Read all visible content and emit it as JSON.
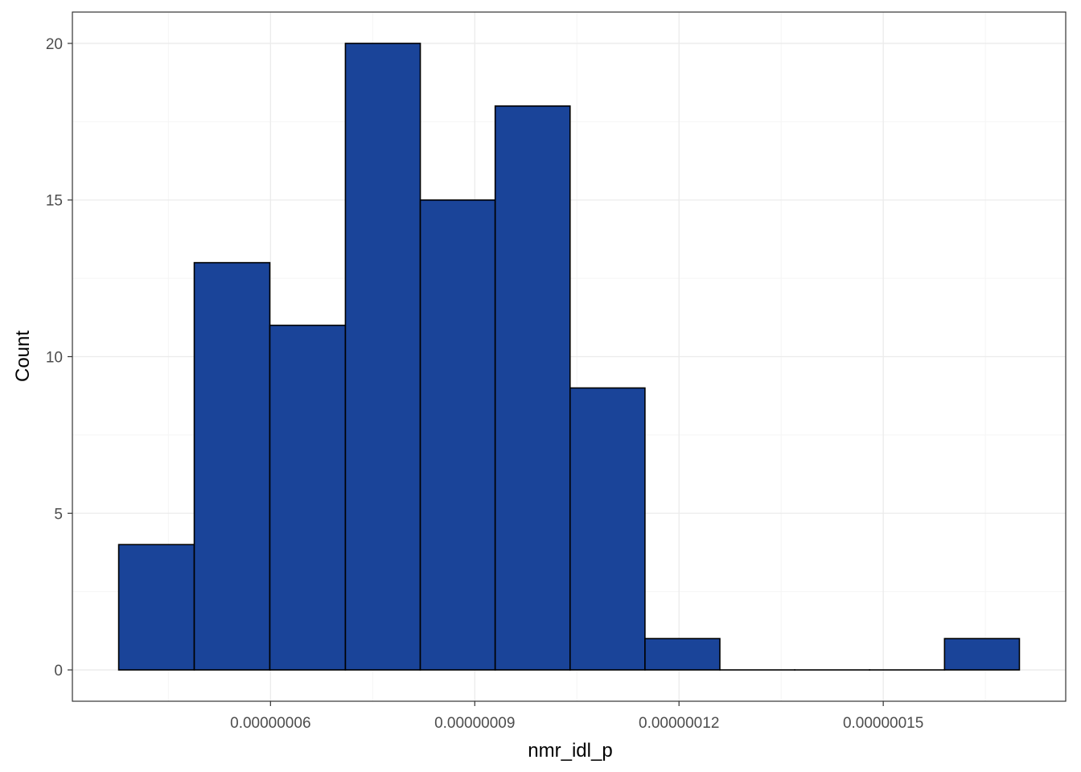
{
  "chart_data": {
    "type": "bar",
    "variant": "histogram",
    "xlabel": "nmr_idl_p",
    "ylabel": "Count",
    "bins": [
      {
        "x0": 3.77e-08,
        "x1": 4.88e-08,
        "count": 4
      },
      {
        "x0": 4.88e-08,
        "x1": 5.99e-08,
        "count": 13
      },
      {
        "x0": 5.99e-08,
        "x1": 7.1e-08,
        "count": 11
      },
      {
        "x0": 7.1e-08,
        "x1": 8.2e-08,
        "count": 20
      },
      {
        "x0": 8.2e-08,
        "x1": 9.3e-08,
        "count": 15
      },
      {
        "x0": 9.3e-08,
        "x1": 1.04e-07,
        "count": 18
      },
      {
        "x0": 1.04e-07,
        "x1": 1.15e-07,
        "count": 9
      },
      {
        "x0": 1.15e-07,
        "x1": 1.26e-07,
        "count": 1
      },
      {
        "x0": 1.26e-07,
        "x1": 1.37e-07,
        "count": 0
      },
      {
        "x0": 1.37e-07,
        "x1": 1.48e-07,
        "count": 0
      },
      {
        "x0": 1.48e-07,
        "x1": 1.59e-07,
        "count": 0
      },
      {
        "x0": 1.59e-07,
        "x1": 1.7e-07,
        "count": 1
      }
    ],
    "xlim": [
      3.09e-08,
      1.768e-07
    ],
    "ylim": [
      -1,
      21
    ],
    "x_ticks": [
      {
        "value": 6e-08,
        "label": "0.00000006"
      },
      {
        "value": 9e-08,
        "label": "0.00000009"
      },
      {
        "value": 1.2e-07,
        "label": "0.00000012"
      },
      {
        "value": 1.5e-07,
        "label": "0.00000015"
      }
    ],
    "x_minor_ticks": [
      4.5e-08,
      7.5e-08,
      1.05e-07,
      1.35e-07,
      1.65e-07
    ],
    "y_ticks": [
      {
        "value": 0,
        "label": "0"
      },
      {
        "value": 5,
        "label": "5"
      },
      {
        "value": 10,
        "label": "10"
      },
      {
        "value": 15,
        "label": "15"
      },
      {
        "value": 20,
        "label": "20"
      }
    ],
    "y_minor_ticks": [
      2.5,
      7.5,
      12.5,
      17.5
    ],
    "grid": true,
    "legend": "none",
    "colors": {
      "bar_fill": "#1A4499",
      "bar_stroke": "#000000",
      "grid_major": "#EBEBEB",
      "grid_minor": "#F5F5F5",
      "panel_border": "#333333",
      "tick_text": "#4D4D4D"
    }
  }
}
